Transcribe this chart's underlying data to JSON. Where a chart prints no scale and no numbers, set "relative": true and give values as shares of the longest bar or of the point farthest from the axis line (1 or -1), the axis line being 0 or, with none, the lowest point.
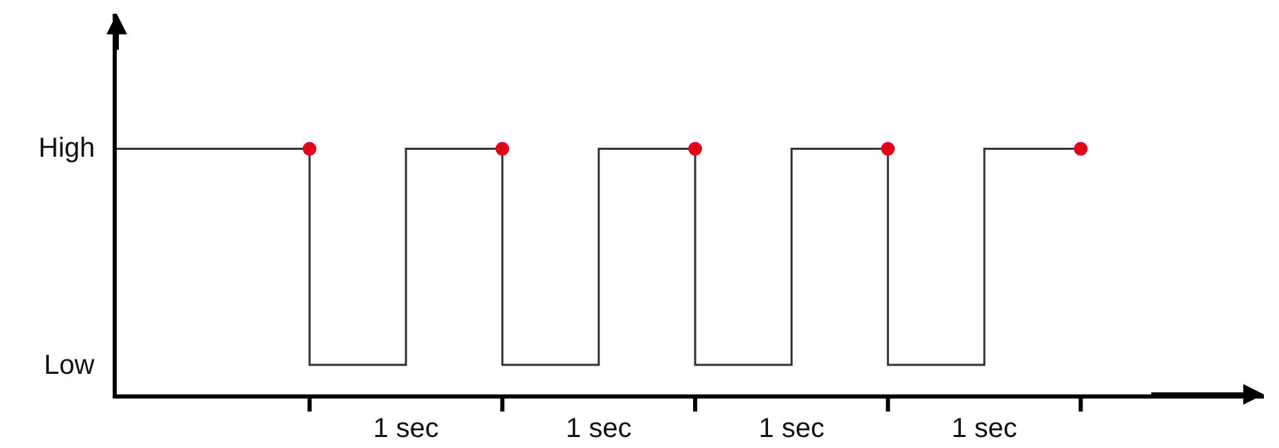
{
  "chart_data": {
    "type": "step",
    "relative": true,
    "categories": [
      null,
      null,
      null,
      "1 sec",
      null,
      "1 sec",
      null,
      "1 sec",
      null,
      "1 sec",
      null
    ],
    "series": [
      {
        "color": "#333333",
        "marker": "none",
        "values": [
          1,
          1,
          0.12,
          1,
          0.12,
          1,
          0.12,
          1,
          0.12,
          1,
          1
        ]
      },
      {
        "type": "scatter",
        "color": "#e3001b",
        "marker": "circle",
        "values": [
          null,
          null,
          1,
          null,
          1,
          null,
          1,
          null,
          1,
          null,
          1
        ]
      }
    ],
    "annotations": [
      "High",
      "Low"
    ]
  }
}
